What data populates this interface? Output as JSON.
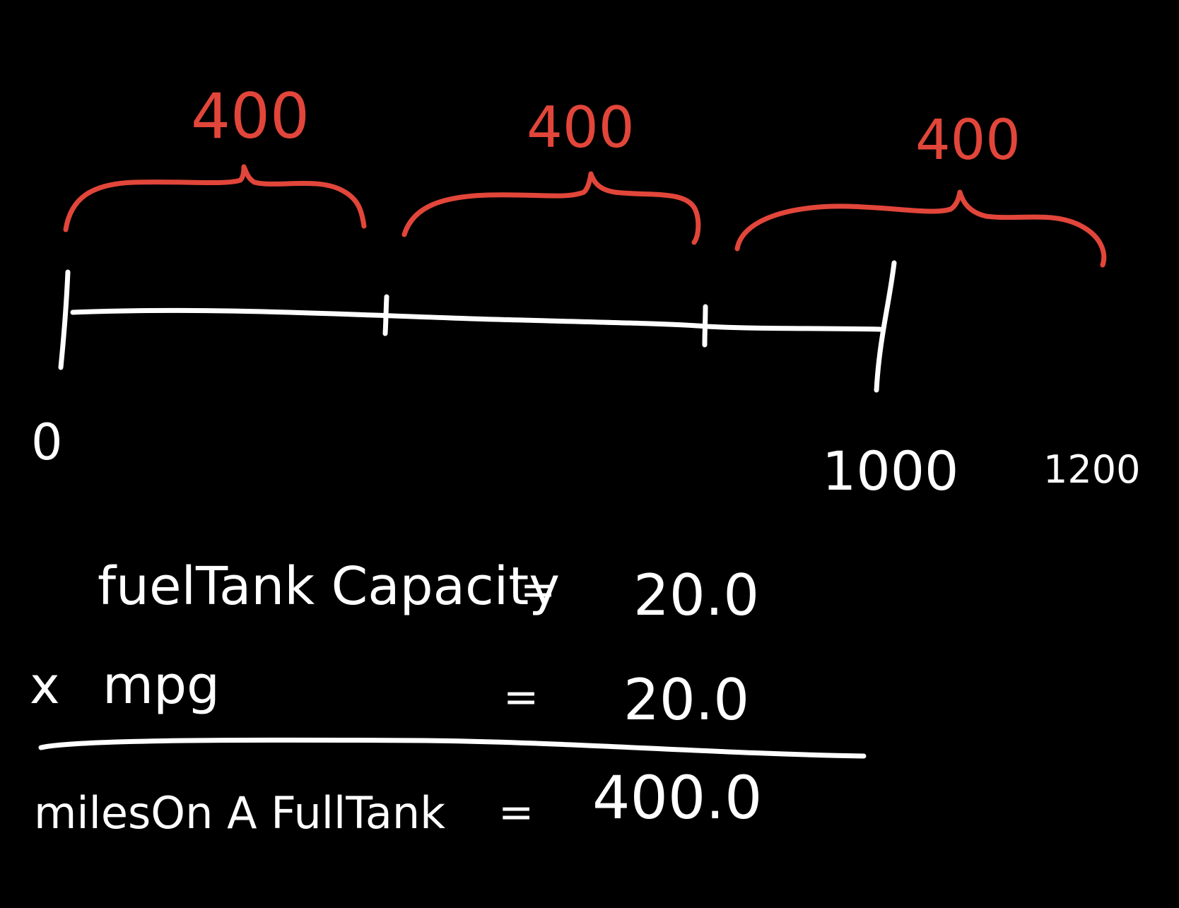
{
  "colors": {
    "background": "#000000",
    "ink": "#ffffff",
    "accent": "#e2463a"
  },
  "segments": [
    {
      "label": "400"
    },
    {
      "label": "400"
    },
    {
      "label": "400"
    }
  ],
  "ticks": {
    "start": "0",
    "end": "1000",
    "beyond": "1200"
  },
  "equation": {
    "line1": {
      "name": "fuelTank Capacity",
      "eq": "=",
      "value": "20.0"
    },
    "line2": {
      "op": "x",
      "name": "mpg",
      "eq": "=",
      "value": "20.0"
    },
    "result": {
      "name": "milesOn A FullTank",
      "eq": "=",
      "value": "400.0"
    }
  }
}
